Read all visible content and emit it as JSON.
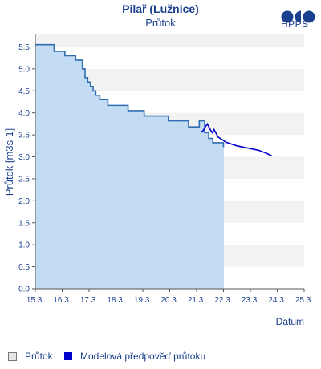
{
  "header": {
    "title": "Pilař (Lužnice)",
    "subtitle": "Průtok",
    "logo_text": "HPPS"
  },
  "legend": {
    "observed": "Průtok",
    "forecast": "Modelová předpověď průtoku"
  },
  "colors": {
    "observed_line": "#2e6db0",
    "observed_fill": "#c4dcf3",
    "forecast_line": "#0000cc",
    "band": "#f2f2f2",
    "text": "#1a3f8c"
  },
  "chart_data": {
    "type": "line",
    "title": "Pilař (Lužnice)",
    "subtitle": "Průtok",
    "xlabel": "Datum",
    "ylabel": "Průtok [m3s-1]",
    "xlim": [
      15.3,
      25.3
    ],
    "ylim": [
      0,
      5.8
    ],
    "x_ticks": [
      "15.3.",
      "16.3.",
      "17.3.",
      "18.3.",
      "19.3.",
      "20.3.",
      "21.3.",
      "22.3.",
      "23.3.",
      "24.3.",
      "25.3."
    ],
    "y_ticks": [
      "0.0",
      "0.5",
      "1.0",
      "1.5",
      "2.0",
      "2.5",
      "3.0",
      "3.5",
      "4.0",
      "4.5",
      "5.0",
      "5.5"
    ],
    "grid": "alternating horizontal bands",
    "legend_position": "bottom",
    "series": [
      {
        "name": "Průtok",
        "style": "step-area",
        "x": [
          15.3,
          16.0,
          16.4,
          16.8,
          17.05,
          17.15,
          17.25,
          17.35,
          17.45,
          17.55,
          17.7,
          18.0,
          18.75,
          19.35,
          20.25,
          21.0,
          21.4,
          21.6,
          21.75,
          21.9,
          22.3
        ],
        "y": [
          5.55,
          5.4,
          5.3,
          5.2,
          5.0,
          4.8,
          4.7,
          4.6,
          4.5,
          4.4,
          4.3,
          4.17,
          4.05,
          3.93,
          3.82,
          3.68,
          3.82,
          3.55,
          3.42,
          3.32,
          3.22
        ]
      },
      {
        "name": "Modelová předpověď průtoku",
        "style": "line",
        "x": [
          21.45,
          21.55,
          21.62,
          21.7,
          21.78,
          21.88,
          21.95,
          22.1,
          22.4,
          22.8,
          23.2,
          23.6,
          23.9,
          24.1
        ],
        "y": [
          3.55,
          3.6,
          3.68,
          3.75,
          3.65,
          3.55,
          3.62,
          3.45,
          3.33,
          3.25,
          3.2,
          3.15,
          3.08,
          3.02
        ]
      }
    ]
  }
}
